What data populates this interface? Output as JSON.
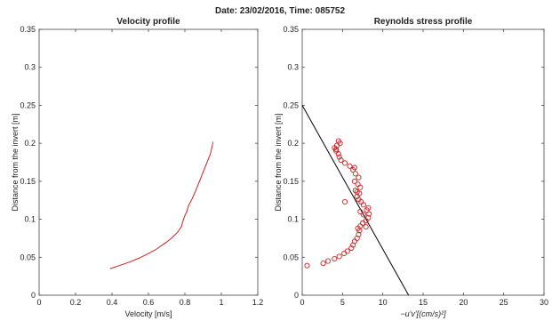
{
  "suptitle": "Date: 23/02/2016, Time: 085752",
  "chart_data": [
    {
      "type": "line",
      "title": "Velocity profile",
      "xlabel": "Velocity [m/s]",
      "ylabel": "Distance from the invert [m]",
      "xlim": [
        0,
        1.2
      ],
      "ylim": [
        0,
        0.35
      ],
      "xticks": [
        "0",
        "0.2",
        "0.4",
        "0.6",
        "0.8",
        "1",
        "1.2"
      ],
      "yticks": [
        "0",
        "0.05",
        "0.1",
        "0.15",
        "0.2",
        "0.25",
        "0.3",
        "0.35"
      ],
      "grid": false,
      "color": "#cc2222",
      "series": [
        {
          "x": [
            0.39,
            0.44,
            0.5,
            0.55,
            0.6,
            0.64,
            0.67,
            0.7,
            0.73,
            0.76,
            0.78,
            0.79,
            0.8,
            0.81,
            0.82,
            0.84,
            0.86,
            0.88,
            0.9,
            0.92,
            0.94,
            0.955
          ],
          "y": [
            0.035,
            0.039,
            0.044,
            0.049,
            0.055,
            0.06,
            0.065,
            0.07,
            0.076,
            0.083,
            0.09,
            0.098,
            0.105,
            0.11,
            0.118,
            0.127,
            0.138,
            0.15,
            0.162,
            0.174,
            0.186,
            0.202
          ]
        }
      ]
    },
    {
      "type": "scatter",
      "title": "Reynolds stress profile",
      "xlabel": "−u'v'[(cm/s)²]",
      "ylabel": "Distance from the invert [m]",
      "xlim": [
        0,
        30
      ],
      "ylim": [
        0,
        0.35
      ],
      "xticks": [
        "0",
        "5",
        "10",
        "15",
        "20",
        "25",
        "30"
      ],
      "yticks": [
        "0",
        "0.05",
        "0.1",
        "0.15",
        "0.2",
        "0.25",
        "0.3",
        "0.35"
      ],
      "grid": false,
      "marker_color": "#cc2222",
      "line_color": "#000000",
      "series": [
        {
          "x": [
            0.6,
            2.6,
            3.2,
            4.0,
            4.6,
            5.2,
            5.6,
            6.1,
            6.3,
            6.5,
            6.8,
            7.0,
            7.1,
            6.9,
            7.2,
            7.5,
            7.9,
            8.2,
            8.3,
            8.0,
            8.2,
            7.6,
            7.3,
            7.0,
            6.8,
            7.1,
            6.6,
            7.2,
            6.9,
            6.5,
            7.0,
            6.6,
            6.3,
            5.9,
            5.3,
            4.8,
            4.6,
            4.5,
            4.2,
            4.0,
            4.3,
            4.7,
            4.5,
            4.2,
            5.3,
            7.6,
            7.2,
            6.8,
            7.9,
            6.5
          ],
          "y": [
            0.039,
            0.042,
            0.045,
            0.048,
            0.051,
            0.055,
            0.058,
            0.062,
            0.066,
            0.071,
            0.075,
            0.08,
            0.085,
            0.088,
            0.091,
            0.095,
            0.098,
            0.102,
            0.107,
            0.112,
            0.115,
            0.119,
            0.123,
            0.126,
            0.13,
            0.134,
            0.138,
            0.142,
            0.146,
            0.15,
            0.155,
            0.16,
            0.165,
            0.17,
            0.174,
            0.178,
            0.182,
            0.186,
            0.19,
            0.194,
            0.197,
            0.2,
            0.203,
            0.192,
            0.123,
            0.106,
            0.11,
            0.136,
            0.09,
            0.168
          ]
        }
      ],
      "line": {
        "x": [
          0,
          13.2
        ],
        "y": [
          0.25,
          0
        ]
      }
    }
  ]
}
